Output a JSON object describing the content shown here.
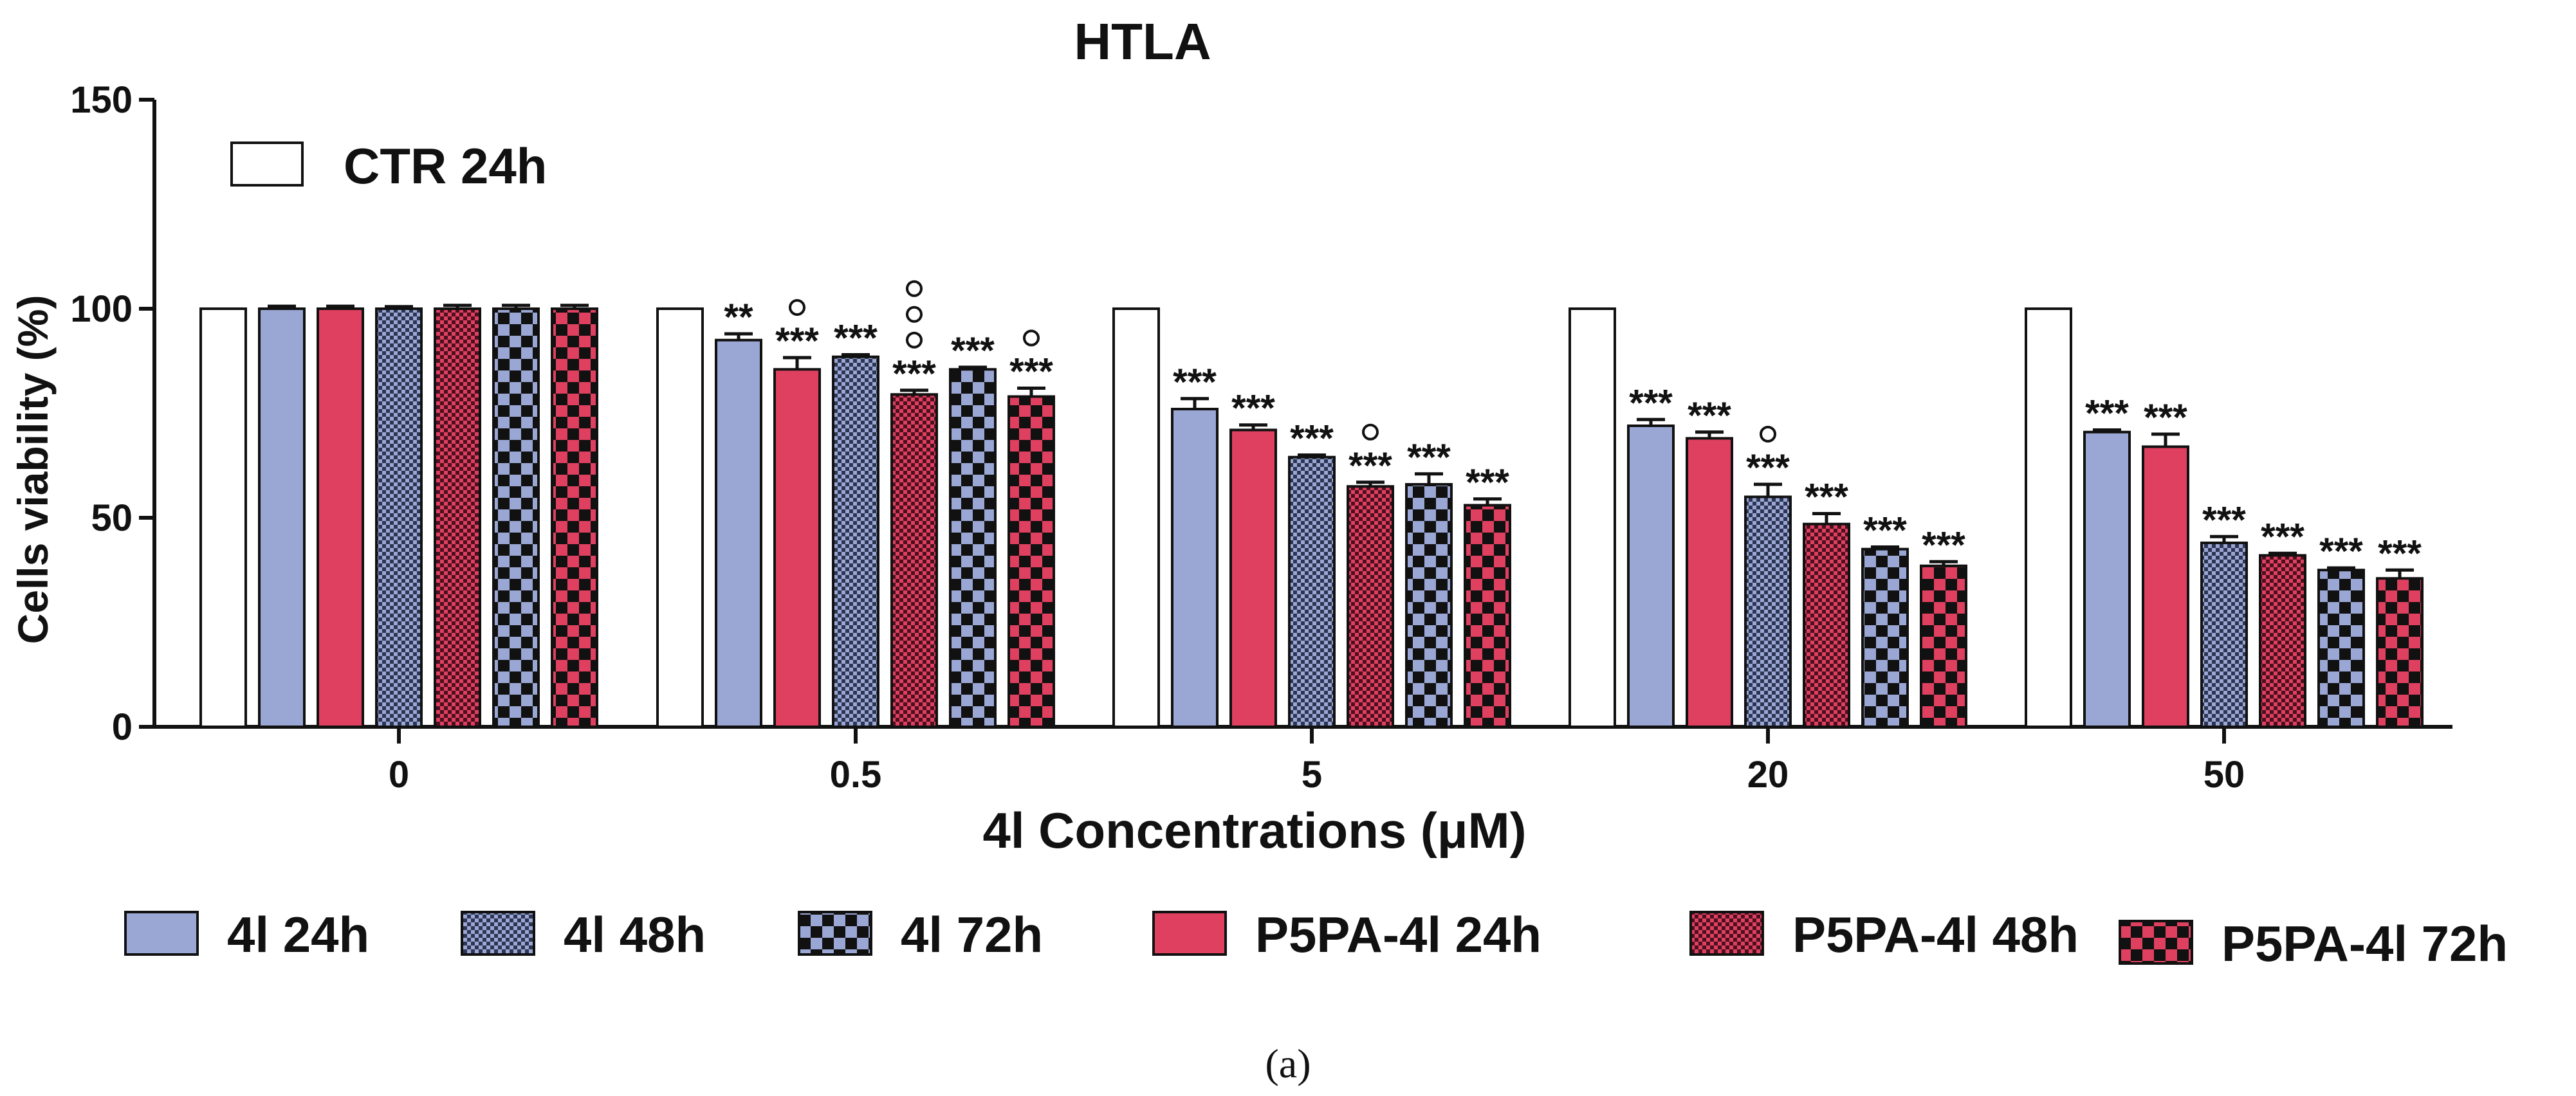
{
  "chart_data": {
    "type": "bar",
    "title": "HTLA",
    "xlabel": "4l Concentrations (μM)",
    "ylabel": "Cells viability (%)",
    "ylim": [
      0,
      150
    ],
    "yticks": [
      0,
      50,
      100,
      150
    ],
    "categories": [
      "0",
      "0.5",
      "5",
      "20",
      "50"
    ],
    "control": {
      "name": "CTR 24h",
      "values": [
        100,
        100,
        100,
        100,
        100
      ],
      "color": "#ffffff"
    },
    "series": [
      {
        "name": "4l 24h",
        "pattern": "solid",
        "color": "#9aa7d4",
        "values": [
          100,
          92.5,
          76,
          72,
          70.5
        ],
        "errors": [
          0.6,
          1.5,
          2.5,
          1.5,
          0.5
        ],
        "stars": [
          "",
          "**",
          "***",
          "***",
          "***"
        ],
        "circles": [
          0,
          0,
          0,
          0,
          0
        ]
      },
      {
        "name": "P5PA-4l 24h",
        "pattern": "solid",
        "color": "#e0405f",
        "values": [
          100,
          85.5,
          71,
          69,
          67
        ],
        "errors": [
          0.6,
          2.8,
          1.2,
          1.5,
          3.0
        ],
        "stars": [
          "",
          "***",
          "***",
          "***",
          "***"
        ],
        "circles": [
          0,
          1,
          0,
          0,
          0
        ]
      },
      {
        "name": "4l 48h",
        "pattern": "fine",
        "color": "#9aa7d4",
        "values": [
          100,
          88.5,
          64.5,
          55,
          44
        ],
        "errors": [
          0.5,
          0.5,
          0.5,
          3.0,
          1.5
        ],
        "stars": [
          "",
          "***",
          "***",
          "***",
          "***"
        ],
        "circles": [
          0,
          0,
          0,
          1,
          0
        ]
      },
      {
        "name": "P5PA-4l 48h",
        "pattern": "fine",
        "color": "#e0405f",
        "values": [
          100,
          79.5,
          57.5,
          48.5,
          41
        ],
        "errors": [
          0.8,
          1.0,
          1.0,
          2.5,
          0.5
        ],
        "stars": [
          "",
          "***",
          "***",
          "***",
          "***"
        ],
        "circles": [
          0,
          3,
          1,
          0,
          0
        ]
      },
      {
        "name": "4l 72h",
        "pattern": "checker",
        "color": "#9aa7d4",
        "values": [
          100,
          85.5,
          58,
          42.5,
          37.5
        ],
        "errors": [
          0.8,
          0.5,
          2.5,
          0.5,
          0.5
        ],
        "stars": [
          "",
          "***",
          "***",
          "***",
          "***"
        ],
        "circles": [
          0,
          0,
          0,
          0,
          0
        ]
      },
      {
        "name": "P5PA-4l 72h",
        "pattern": "checker",
        "color": "#e0405f",
        "values": [
          100,
          79,
          53,
          38.5,
          35.5
        ],
        "errors": [
          0.8,
          2.0,
          1.5,
          1.0,
          2.0
        ],
        "stars": [
          "",
          "***",
          "***",
          "***",
          "***"
        ],
        "circles": [
          0,
          1,
          0,
          0,
          0
        ]
      }
    ],
    "legend_position": "bottom",
    "caption": "(a)"
  }
}
